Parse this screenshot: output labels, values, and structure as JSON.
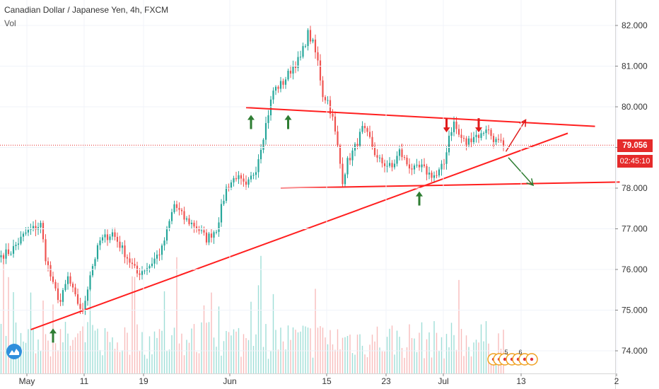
{
  "header": {
    "title": "Canadian Dollar / Japanese Yen, 4h, FXCM",
    "volume_label": "Vol"
  },
  "price_axis": {
    "last_price": "79.056",
    "countdown": "02:45:10"
  },
  "events": [
    "5",
    "6"
  ],
  "colors": {
    "up": "#26a69a",
    "down": "#ef5350",
    "trendline": "#ff1f1f",
    "up_arrow": "#2e7d32",
    "down_arrow": "#e01b1b",
    "axis_text": "#333333",
    "logo": "#2f8fdc"
  },
  "chart_data": {
    "type": "candlestick",
    "title": "Canadian Dollar / Japanese Yen, 4h, FXCM",
    "ylim": [
      73.75,
      82.35
    ],
    "y_ticks": [
      "82.000",
      "81.000",
      "80.000",
      "79.000",
      "78.000",
      "77.000",
      "76.000",
      "75.000",
      "74.000"
    ],
    "x_ticks": [
      "May",
      "11",
      "19",
      "Jun",
      "15",
      "23",
      "Jul",
      "13",
      "2"
    ],
    "last_price": 79.056,
    "price_path": [
      [
        0,
        76.35
      ],
      [
        4,
        76.45
      ],
      [
        10,
        76.9
      ],
      [
        16,
        77.1
      ],
      [
        18,
        76.3
      ],
      [
        21,
        75.6
      ],
      [
        24,
        75.2
      ],
      [
        27,
        75.8
      ],
      [
        30,
        75.3
      ],
      [
        33,
        74.95
      ],
      [
        36,
        75.9
      ],
      [
        40,
        76.7
      ],
      [
        45,
        76.9
      ],
      [
        50,
        76.4
      ],
      [
        55,
        75.9
      ],
      [
        60,
        76.1
      ],
      [
        65,
        76.5
      ],
      [
        70,
        77.6
      ],
      [
        74,
        77.25
      ],
      [
        79,
        77.05
      ],
      [
        83,
        76.75
      ],
      [
        87,
        77.0
      ],
      [
        91,
        78.0
      ],
      [
        95,
        78.3
      ],
      [
        99,
        78.0
      ],
      [
        103,
        78.5
      ],
      [
        106,
        79.3
      ],
      [
        110,
        80.4
      ],
      [
        114,
        80.6
      ],
      [
        118,
        81.0
      ],
      [
        121,
        81.2
      ],
      [
        124,
        81.8
      ],
      [
        126,
        81.55
      ],
      [
        128,
        81.1
      ],
      [
        130,
        80.3
      ],
      [
        132,
        80.15
      ],
      [
        134,
        79.7
      ],
      [
        136,
        79.0
      ],
      [
        138,
        78.2
      ],
      [
        140,
        78.65
      ],
      [
        143,
        79.0
      ],
      [
        146,
        79.45
      ],
      [
        149,
        79.2
      ],
      [
        152,
        78.7
      ],
      [
        155,
        78.6
      ],
      [
        158,
        78.5
      ],
      [
        161,
        78.9
      ],
      [
        164,
        78.6
      ],
      [
        167,
        78.45
      ],
      [
        170,
        78.5
      ],
      [
        173,
        78.35
      ],
      [
        176,
        78.3
      ],
      [
        179,
        78.6
      ],
      [
        181,
        79.3
      ],
      [
        183,
        79.6
      ],
      [
        185,
        79.3
      ],
      [
        188,
        79.1
      ],
      [
        191,
        79.3
      ],
      [
        194,
        79.3
      ],
      [
        196,
        79.5
      ],
      [
        198,
        79.3
      ],
      [
        200,
        79.15
      ],
      [
        203,
        79.05
      ]
    ],
    "trendlines": [
      {
        "start": [
          12,
          74.52
        ],
        "end": [
          229,
          79.35
        ]
      },
      {
        "start": [
          99,
          79.98
        ],
        "end": [
          240,
          79.52
        ]
      },
      {
        "start": [
          113,
          78.0
        ],
        "end": [
          250,
          78.15
        ]
      }
    ],
    "annotations": [
      {
        "label": "support",
        "x": 21,
        "price": 74.55,
        "direction": "up"
      },
      {
        "label": "support",
        "x": 101,
        "price": 79.8,
        "direction": "up"
      },
      {
        "label": "support",
        "x": 116,
        "price": 79.8,
        "direction": "up"
      },
      {
        "label": "support",
        "x": 169,
        "price": 77.92,
        "direction": "up"
      },
      {
        "label": "resistance",
        "x": 180,
        "price": 79.72,
        "direction": "down"
      },
      {
        "label": "resistance",
        "x": 193,
        "price": 79.72,
        "direction": "down"
      }
    ],
    "breakout_arrows": [
      {
        "from": [
          204,
          78.9
        ],
        "to": [
          212,
          79.68
        ],
        "color": "#e01b1b"
      },
      {
        "from": [
          205,
          78.75
        ],
        "to": [
          215,
          78.07
        ],
        "color": "#2e7d32"
      }
    ]
  }
}
